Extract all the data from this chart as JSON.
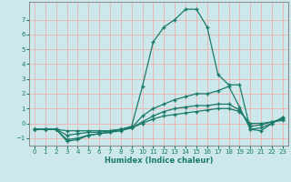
{
  "xlabel": "Humidex (Indice chaleur)",
  "x": [
    0,
    1,
    2,
    3,
    4,
    5,
    6,
    7,
    8,
    9,
    10,
    11,
    12,
    13,
    14,
    15,
    16,
    17,
    18,
    19,
    20,
    21,
    22,
    23
  ],
  "line1": [
    -0.4,
    -0.4,
    -0.4,
    -0.5,
    -0.5,
    -0.5,
    -0.5,
    -0.5,
    -0.4,
    -0.3,
    0.0,
    0.3,
    0.5,
    0.6,
    0.7,
    0.8,
    0.9,
    1.0,
    1.0,
    0.8,
    0.0,
    0.0,
    0.1,
    0.2
  ],
  "line2": [
    -0.4,
    -0.4,
    -0.4,
    -0.8,
    -0.7,
    -0.6,
    -0.6,
    -0.5,
    -0.4,
    -0.3,
    0.1,
    0.5,
    0.8,
    1.0,
    1.1,
    1.2,
    1.2,
    1.3,
    1.3,
    0.9,
    -0.2,
    -0.1,
    0.1,
    0.3
  ],
  "line3": [
    -0.4,
    -0.4,
    -0.4,
    -1.1,
    -1.0,
    -0.8,
    -0.7,
    -0.6,
    -0.5,
    -0.3,
    0.5,
    1.0,
    1.3,
    1.6,
    1.8,
    2.0,
    2.0,
    2.2,
    2.5,
    1.1,
    -0.4,
    -0.3,
    0.0,
    0.4
  ],
  "line4": [
    -0.4,
    -0.4,
    -0.4,
    -1.2,
    -1.1,
    -0.8,
    -0.7,
    -0.6,
    -0.4,
    -0.2,
    2.5,
    5.5,
    6.5,
    7.0,
    7.7,
    7.7,
    6.5,
    3.3,
    2.6,
    2.6,
    -0.4,
    -0.5,
    0.0,
    0.4
  ],
  "line_color": "#1a7a6a",
  "bg_color": "#cce8ea",
  "grid_color": "#e8b8b8",
  "ylim": [
    -1.5,
    8.2
  ],
  "xlim": [
    -0.5,
    23.5
  ],
  "yticks": [
    -1,
    0,
    1,
    2,
    3,
    4,
    5,
    6,
    7
  ],
  "xticks": [
    0,
    1,
    2,
    3,
    4,
    5,
    6,
    7,
    8,
    9,
    10,
    11,
    12,
    13,
    14,
    15,
    16,
    17,
    18,
    19,
    20,
    21,
    22,
    23
  ],
  "xlabel_color": "#1a7a6a",
  "tick_color": "#1a7a6a",
  "spine_color": "#888888"
}
